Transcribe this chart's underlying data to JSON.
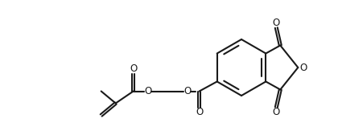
{
  "bg_color": "#ffffff",
  "line_color": "#1a1a1a",
  "line_width": 1.5,
  "figsize": [
    4.2,
    1.68
  ],
  "dpi": 100,
  "font_size": 8.5,
  "xlim": [
    0,
    42
  ],
  "ylim": [
    0,
    16.8
  ]
}
